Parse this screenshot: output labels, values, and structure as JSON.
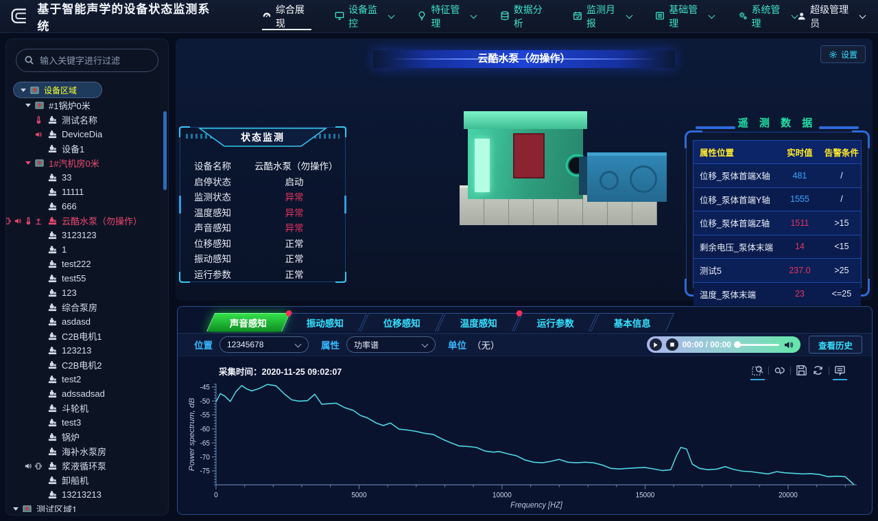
{
  "app": {
    "title": "基于智能声学的设备状态监测系统"
  },
  "nav": {
    "items": [
      {
        "label": "综合展现",
        "icon": "dashboard-icon",
        "active": true,
        "caret": false
      },
      {
        "label": "设备监控",
        "icon": "monitor-icon",
        "active": false,
        "caret": true
      },
      {
        "label": "特征管理",
        "icon": "bulb-icon",
        "active": false,
        "caret": true
      },
      {
        "label": "数据分析",
        "icon": "database-icon",
        "active": false,
        "caret": false
      },
      {
        "label": "监测月报",
        "icon": "calendar-icon",
        "active": false,
        "caret": true
      },
      {
        "label": "基础管理",
        "icon": "list-icon",
        "active": false,
        "caret": true
      },
      {
        "label": "系统管理",
        "icon": "gears-icon",
        "active": false,
        "caret": true
      }
    ],
    "user": {
      "label": "超级管理员"
    }
  },
  "sidebar": {
    "search_placeholder": "输入关键字进行过滤",
    "tree": [
      {
        "label": "设备区域",
        "depth": 0,
        "type": "area",
        "arrow": true,
        "selected": true,
        "color": "yellow"
      },
      {
        "label": "#1锅炉0米",
        "depth": 1,
        "type": "area",
        "arrow": true
      },
      {
        "label": "测试名称",
        "depth": 2,
        "type": "device",
        "pre": [
          "temperature"
        ]
      },
      {
        "label": "DeviceDia",
        "depth": 2,
        "type": "device",
        "pre": [
          "sound"
        ]
      },
      {
        "label": "设备1",
        "depth": 2,
        "type": "device"
      },
      {
        "label": "1#汽机房0米",
        "depth": 1,
        "type": "area",
        "arrow": true,
        "color": "pink"
      },
      {
        "label": "33",
        "depth": 2,
        "type": "device"
      },
      {
        "label": "11111",
        "depth": 2,
        "type": "device"
      },
      {
        "label": "666",
        "depth": 2,
        "type": "device"
      },
      {
        "label": "云酷水泵（勿操作）",
        "depth": 2,
        "type": "device",
        "color": "pink",
        "pre": [
          "vibration",
          "sound",
          "temperature",
          "displacement"
        ]
      },
      {
        "label": "3123123",
        "depth": 2,
        "type": "device"
      },
      {
        "label": "1",
        "depth": 2,
        "type": "device"
      },
      {
        "label": "test222",
        "depth": 2,
        "type": "device"
      },
      {
        "label": "test55",
        "depth": 2,
        "type": "device"
      },
      {
        "label": "123",
        "depth": 2,
        "type": "device"
      },
      {
        "label": "综合泵房",
        "depth": 2,
        "type": "device"
      },
      {
        "label": "asdasd",
        "depth": 2,
        "type": "device"
      },
      {
        "label": "C2B电机1",
        "depth": 2,
        "type": "device"
      },
      {
        "label": "123213",
        "depth": 2,
        "type": "device"
      },
      {
        "label": "C2B电机2",
        "depth": 2,
        "type": "device"
      },
      {
        "label": "test2",
        "depth": 2,
        "type": "device"
      },
      {
        "label": "adssadsad",
        "depth": 2,
        "type": "device"
      },
      {
        "label": "斗轮机",
        "depth": 2,
        "type": "device"
      },
      {
        "label": "test3",
        "depth": 2,
        "type": "device"
      },
      {
        "label": "锅炉",
        "depth": 2,
        "type": "device"
      },
      {
        "label": "海补水泵房",
        "depth": 2,
        "type": "device"
      },
      {
        "label": "浆液循环泵",
        "depth": 2,
        "type": "device",
        "pre_grey": [
          "sound",
          "vibration"
        ]
      },
      {
        "label": "卸船机",
        "depth": 2,
        "type": "device"
      },
      {
        "label": "13213213",
        "depth": 2,
        "type": "device"
      },
      {
        "label": "测试区域1",
        "depth": 0,
        "type": "area",
        "arrow": true
      }
    ]
  },
  "page": {
    "title": "云酷水泵（勿操作）",
    "settings_label": "设置"
  },
  "status_panel": {
    "title": "状态监测",
    "rows": [
      {
        "label": "设备名称",
        "value": "云酷水泵（勿操作）",
        "state": "normal"
      },
      {
        "label": "启停状态",
        "value": "启动",
        "state": "normal"
      },
      {
        "label": "监测状态",
        "value": "异常",
        "state": "alarm"
      },
      {
        "label": "温度感知",
        "value": "异常",
        "state": "alarm"
      },
      {
        "label": "声音感知",
        "value": "异常",
        "state": "alarm"
      },
      {
        "label": "位移感知",
        "value": "正常",
        "state": "normal"
      },
      {
        "label": "振动感知",
        "value": "正常",
        "state": "normal"
      },
      {
        "label": "运行参数",
        "value": "正常",
        "state": "normal"
      }
    ]
  },
  "telemetry": {
    "title": "遥 测 数 据",
    "columns": [
      "属性位置",
      "实时值",
      "告警条件"
    ],
    "rows": [
      {
        "name": "位移_泵体首端X轴",
        "value": "481",
        "condition": "/",
        "value_color": "cyan"
      },
      {
        "name": "位移_泵体首端Y轴",
        "value": "1555",
        "condition": "/",
        "value_color": "cyan"
      },
      {
        "name": "位移_泵体首端Z轴",
        "value": "1511",
        "condition": ">15",
        "value_color": "red"
      },
      {
        "name": "剩余电压_泵体末端",
        "value": "14",
        "condition": "<15",
        "value_color": "red"
      },
      {
        "name": "测试5",
        "value": "237.0",
        "condition": ">25",
        "value_color": "red"
      },
      {
        "name": "温度_泵体末端",
        "value": "23",
        "condition": "<=25",
        "value_color": "red"
      }
    ]
  },
  "tabs": [
    {
      "label": "声音感知",
      "active": true,
      "badge": true
    },
    {
      "label": "振动感知",
      "active": false,
      "badge": false
    },
    {
      "label": "位移感知",
      "active": false,
      "badge": false
    },
    {
      "label": "温度感知",
      "active": false,
      "badge": true
    },
    {
      "label": "运行参数",
      "active": false,
      "badge": false
    },
    {
      "label": "基本信息",
      "active": false,
      "badge": false
    }
  ],
  "controls": {
    "position_label": "位置",
    "position_value": "12345678",
    "attribute_label": "属性",
    "attribute_value": "功率谱",
    "unit_label": "单位",
    "unit_value": "（无）",
    "player_time": "00:00 / 00:00",
    "history_label": "查看历史"
  },
  "chart_data": {
    "type": "line",
    "title": "采集时间：2020-11-25 09:02:07",
    "xlabel": "Frequency [HZ]",
    "ylabel": "Power spectrum, dB",
    "xlim": [
      0,
      22400
    ],
    "ylim": [
      -80,
      -44
    ],
    "x_major_ticks": [
      0,
      5000,
      10000,
      15000,
      20000
    ],
    "y_major_ticks": [
      -75,
      -70,
      -65,
      -60,
      -55,
      -50,
      -45
    ],
    "grid": false,
    "legend": null,
    "line_color": "#4fd6e3",
    "points": [
      [
        0,
        -50.3
      ],
      [
        150,
        -47.4
      ],
      [
        300,
        -48.2
      ],
      [
        500,
        -50.2
      ],
      [
        700,
        -46.6
      ],
      [
        900,
        -44.5
      ],
      [
        1050,
        -45.6
      ],
      [
        1250,
        -46.4
      ],
      [
        1500,
        -45.6
      ],
      [
        1800,
        -44.1
      ],
      [
        2100,
        -44.6
      ],
      [
        2400,
        -47.6
      ],
      [
        2650,
        -49.6
      ],
      [
        2900,
        -50.1
      ],
      [
        3200,
        -49.9
      ],
      [
        3450,
        -47.6
      ],
      [
        3700,
        -51.2
      ],
      [
        3950,
        -51.0
      ],
      [
        4200,
        -50.8
      ],
      [
        4500,
        -52.4
      ],
      [
        4800,
        -53.4
      ],
      [
        5050,
        -55.2
      ],
      [
        5300,
        -56.1
      ],
      [
        5600,
        -57.9
      ],
      [
        5850,
        -58.8
      ],
      [
        6100,
        -57.9
      ],
      [
        6400,
        -60.1
      ],
      [
        6700,
        -60.4
      ],
      [
        7000,
        -60.9
      ],
      [
        7300,
        -61.6
      ],
      [
        7600,
        -62.0
      ],
      [
        7900,
        -63.6
      ],
      [
        8200,
        -64.9
      ],
      [
        8500,
        -66.1
      ],
      [
        8800,
        -66.3
      ],
      [
        9100,
        -66.6
      ],
      [
        9400,
        -67.9
      ],
      [
        9700,
        -68.3
      ],
      [
        9900,
        -68.1
      ],
      [
        10200,
        -68.9
      ],
      [
        10500,
        -69.6
      ],
      [
        10800,
        -71.1
      ],
      [
        11100,
        -71.9
      ],
      [
        11400,
        -72.1
      ],
      [
        11700,
        -71.6
      ],
      [
        12000,
        -70.9
      ],
      [
        12300,
        -71.9
      ],
      [
        12600,
        -72.1
      ],
      [
        12900,
        -71.9
      ],
      [
        13200,
        -72.1
      ],
      [
        13500,
        -72.9
      ],
      [
        13800,
        -74.1
      ],
      [
        14100,
        -74.3
      ],
      [
        14400,
        -74.1
      ],
      [
        14700,
        -73.9
      ],
      [
        15000,
        -73.8
      ],
      [
        15300,
        -74.3
      ],
      [
        15600,
        -74.9
      ],
      [
        15900,
        -74.6
      ],
      [
        16100,
        -69.5
      ],
      [
        16250,
        -66.6
      ],
      [
        16450,
        -67.2
      ],
      [
        16650,
        -72.6
      ],
      [
        16900,
        -74.1
      ],
      [
        17200,
        -74.6
      ],
      [
        17500,
        -74.4
      ],
      [
        17800,
        -73.5
      ],
      [
        18100,
        -74.5
      ],
      [
        18400,
        -75.1
      ],
      [
        18700,
        -75.3
      ],
      [
        19000,
        -75.7
      ],
      [
        19300,
        -76.1
      ],
      [
        19600,
        -75.3
      ],
      [
        19900,
        -75.7
      ],
      [
        20200,
        -75.9
      ],
      [
        20500,
        -76.1
      ],
      [
        20800,
        -76.0
      ],
      [
        21100,
        -76.3
      ],
      [
        21400,
        -77.1
      ],
      [
        21700,
        -76.9
      ],
      [
        22000,
        -77.1
      ],
      [
        22300,
        -79.9
      ]
    ]
  },
  "toolbox": [
    "data-zoom-icon",
    "zoom-restore-icon",
    "save-image-icon",
    "refresh-icon",
    "data-view-icon"
  ]
}
